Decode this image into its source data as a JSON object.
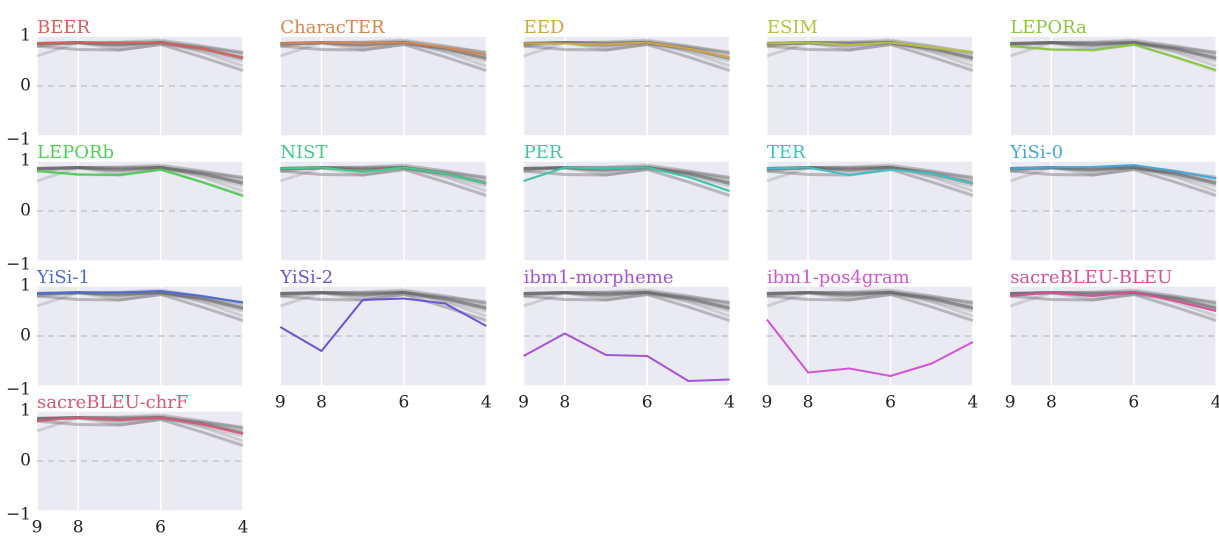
{
  "chart_data": [
    {
      "type": "line",
      "title": "BEER",
      "x": [
        9,
        8,
        7,
        6,
        5,
        4
      ],
      "xlim": [
        9,
        4
      ],
      "xticks": [
        9,
        8,
        6,
        4
      ],
      "ylim": [
        -1,
        1
      ],
      "yticks": [
        {
          "value": -1,
          "label": "−1"
        },
        0,
        1
      ],
      "series": [
        {
          "color": "#d95f5a",
          "values": [
            0.85,
            0.87,
            0.87,
            0.87,
            0.75,
            0.57
          ]
        }
      ]
    },
    {
      "type": "line",
      "title": "CharacTER",
      "x": [
        9,
        8,
        7,
        6,
        5,
        4
      ],
      "xlim": [
        9,
        4
      ],
      "xticks": [
        9,
        8,
        6,
        4
      ],
      "ylim": [
        -1,
        1
      ],
      "yticks": [
        {
          "value": -1,
          "label": "−1"
        },
        0,
        1
      ],
      "series": [
        {
          "color": "#d9844d",
          "values": [
            0.85,
            0.87,
            0.85,
            0.87,
            0.77,
            0.62
          ]
        }
      ]
    },
    {
      "type": "line",
      "title": "EED",
      "x": [
        9,
        8,
        7,
        6,
        5,
        4
      ],
      "xlim": [
        9,
        4
      ],
      "xticks": [
        9,
        8,
        6,
        4
      ],
      "ylim": [
        -1,
        1
      ],
      "yticks": [
        {
          "value": -1,
          "label": "−1"
        },
        0,
        1
      ],
      "series": [
        {
          "color": "#cfa642",
          "values": [
            0.85,
            0.85,
            0.83,
            0.87,
            0.75,
            0.57
          ]
        }
      ]
    },
    {
      "type": "line",
      "title": "ESIM",
      "x": [
        9,
        8,
        7,
        6,
        5,
        4
      ],
      "xlim": [
        9,
        4
      ],
      "xticks": [
        9,
        8,
        6,
        4
      ],
      "ylim": [
        -1,
        1
      ],
      "yticks": [
        {
          "value": -1,
          "label": "−1"
        },
        0,
        1
      ],
      "series": [
        {
          "color": "#b6c23c",
          "values": [
            0.85,
            0.87,
            0.82,
            0.87,
            0.77,
            0.68
          ]
        }
      ]
    },
    {
      "type": "line",
      "title": "LEPORa",
      "x": [
        9,
        8,
        7,
        6,
        5,
        4
      ],
      "xlim": [
        9,
        4
      ],
      "xticks": [
        9,
        8,
        6,
        4
      ],
      "ylim": [
        -1,
        1
      ],
      "yticks": [
        {
          "value": -1,
          "label": "−1"
        },
        0,
        1
      ],
      "series": [
        {
          "color": "#8bc83f",
          "values": [
            0.8,
            0.73,
            0.72,
            0.83,
            0.58,
            0.32
          ]
        }
      ]
    },
    {
      "type": "line",
      "title": "LEPORb",
      "x": [
        9,
        8,
        7,
        6,
        5,
        4
      ],
      "xlim": [
        9,
        4
      ],
      "xticks": [
        9,
        8,
        6,
        4
      ],
      "ylim": [
        -1,
        1
      ],
      "yticks": [
        {
          "value": -1,
          "label": "−1"
        },
        0,
        1
      ],
      "series": [
        {
          "color": "#4fcf56",
          "values": [
            0.8,
            0.73,
            0.72,
            0.83,
            0.58,
            0.3
          ]
        }
      ]
    },
    {
      "type": "line",
      "title": "NIST",
      "x": [
        9,
        8,
        7,
        6,
        5,
        4
      ],
      "xlim": [
        9,
        4
      ],
      "xticks": [
        9,
        8,
        6,
        4
      ],
      "ylim": [
        -1,
        1
      ],
      "yticks": [
        {
          "value": -1,
          "label": "−1"
        },
        0,
        1
      ],
      "series": [
        {
          "color": "#3fcc8a",
          "values": [
            0.85,
            0.87,
            0.78,
            0.87,
            0.75,
            0.55
          ]
        }
      ]
    },
    {
      "type": "line",
      "title": "PER",
      "x": [
        9,
        8,
        7,
        6,
        5,
        4
      ],
      "xlim": [
        9,
        4
      ],
      "xticks": [
        9,
        8,
        6,
        4
      ],
      "ylim": [
        -1,
        1
      ],
      "yticks": [
        {
          "value": -1,
          "label": "−1"
        },
        0,
        1
      ],
      "series": [
        {
          "color": "#3ec5a8",
          "values": [
            0.6,
            0.87,
            0.85,
            0.87,
            0.68,
            0.4
          ]
        }
      ]
    },
    {
      "type": "line",
      "title": "TER",
      "x": [
        9,
        8,
        7,
        6,
        5,
        4
      ],
      "xlim": [
        9,
        4
      ],
      "xticks": [
        9,
        8,
        6,
        4
      ],
      "ylim": [
        -1,
        1
      ],
      "yticks": [
        {
          "value": -1,
          "label": "−1"
        },
        0,
        1
      ],
      "series": [
        {
          "color": "#40bfc6",
          "values": [
            0.85,
            0.87,
            0.72,
            0.83,
            0.75,
            0.55
          ]
        }
      ]
    },
    {
      "type": "line",
      "title": "YiSi-0",
      "x": [
        9,
        8,
        7,
        6,
        5,
        4
      ],
      "xlim": [
        9,
        4
      ],
      "xticks": [
        9,
        8,
        6,
        4
      ],
      "ylim": [
        -1,
        1
      ],
      "yticks": [
        {
          "value": -1,
          "label": "−1"
        },
        0,
        1
      ],
      "series": [
        {
          "color": "#45a7d8",
          "values": [
            0.85,
            0.87,
            0.88,
            0.92,
            0.8,
            0.65
          ]
        }
      ]
    },
    {
      "type": "line",
      "title": "YiSi-1",
      "x": [
        9,
        8,
        7,
        6,
        5,
        4
      ],
      "xlim": [
        9,
        4
      ],
      "xticks": [
        9,
        8,
        6,
        4
      ],
      "ylim": [
        -1,
        1
      ],
      "yticks": [
        {
          "value": -1,
          "label": "−1"
        },
        0,
        1
      ],
      "series": [
        {
          "color": "#4f6cd6",
          "values": [
            0.85,
            0.87,
            0.87,
            0.9,
            0.8,
            0.67
          ]
        }
      ]
    },
    {
      "type": "line",
      "title": "YiSi-2",
      "x": [
        9,
        8,
        7,
        6,
        5,
        4
      ],
      "xlim": [
        9,
        4
      ],
      "xticks": [
        9,
        8,
        6,
        4
      ],
      "ylim": [
        -1,
        1
      ],
      "yticks": [
        {
          "value": -1,
          "label": "−1"
        },
        0,
        1
      ],
      "series": [
        {
          "color": "#6a55d6",
          "values": [
            0.18,
            -0.3,
            0.72,
            0.75,
            0.65,
            0.2
          ]
        }
      ]
    },
    {
      "type": "line",
      "title": "ibm1-morpheme",
      "x": [
        9,
        8,
        7,
        6,
        5,
        4
      ],
      "xlim": [
        9,
        4
      ],
      "xticks": [
        9,
        8,
        6,
        4
      ],
      "ylim": [
        -1,
        1
      ],
      "yticks": [
        {
          "value": -1,
          "label": "−1"
        },
        0,
        1
      ],
      "series": [
        {
          "color": "#a452d6",
          "values": [
            -0.4,
            0.05,
            -0.38,
            -0.4,
            -0.9,
            -0.87
          ]
        }
      ]
    },
    {
      "type": "line",
      "title": "ibm1-pos4gram",
      "x": [
        9,
        8,
        7,
        6,
        5,
        4
      ],
      "xlim": [
        9,
        4
      ],
      "xticks": [
        9,
        8,
        6,
        4
      ],
      "ylim": [
        -1,
        1
      ],
      "yticks": [
        {
          "value": -1,
          "label": "−1"
        },
        0,
        1
      ],
      "series": [
        {
          "color": "#d454d4",
          "values": [
            0.33,
            -0.73,
            -0.65,
            -0.8,
            -0.55,
            -0.12
          ]
        }
      ]
    },
    {
      "type": "line",
      "title": "sacreBLEU-BLEU",
      "x": [
        9,
        8,
        7,
        6,
        5,
        4
      ],
      "xlim": [
        9,
        4
      ],
      "xticks": [
        9,
        8,
        6,
        4
      ],
      "ylim": [
        -1,
        1
      ],
      "yticks": [
        {
          "value": -1,
          "label": "−1"
        },
        0,
        1
      ],
      "series": [
        {
          "color": "#d94f98",
          "values": [
            0.8,
            0.87,
            0.8,
            0.88,
            0.7,
            0.5
          ]
        }
      ]
    },
    {
      "type": "line",
      "title": "sacreBLEU-chrF",
      "x": [
        9,
        8,
        7,
        6,
        5,
        4
      ],
      "xlim": [
        9,
        4
      ],
      "xticks": [
        9,
        8,
        6,
        4
      ],
      "ylim": [
        -1,
        1
      ],
      "yticks": [
        {
          "value": -1,
          "label": "−1"
        },
        0,
        1
      ],
      "series": [
        {
          "color": "#d9587a",
          "values": [
            0.8,
            0.87,
            0.82,
            0.87,
            0.73,
            0.55
          ]
        }
      ]
    }
  ]
}
